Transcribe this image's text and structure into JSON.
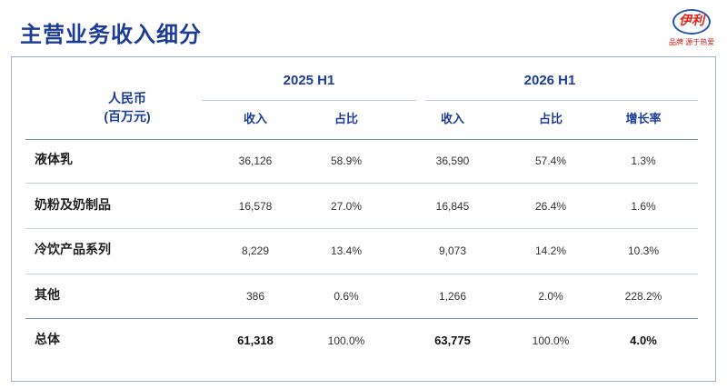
{
  "title": "主营业务收入细分",
  "brand": {
    "logo_text": "伊利",
    "slogan": "品牌 源于热爱"
  },
  "table": {
    "unit_line1": "人民币",
    "unit_line2": "(百万元)",
    "periods": [
      "2025 H1",
      "2026 H1"
    ],
    "columns": [
      "收入",
      "占比",
      "收入",
      "占比",
      "增长率"
    ],
    "rows": [
      {
        "label": "液体乳",
        "values": [
          "36,126",
          "58.9%",
          "36,590",
          "57.4%",
          "1.3%"
        ]
      },
      {
        "label": "奶粉及奶制品",
        "values": [
          "16,578",
          "27.0%",
          "16,845",
          "26.4%",
          "1.6%"
        ]
      },
      {
        "label": "冷饮产品系列",
        "values": [
          "8,229",
          "13.4%",
          "9,073",
          "14.2%",
          "10.3%"
        ]
      },
      {
        "label": "其他",
        "values": [
          "386",
          "0.6%",
          "1,266",
          "2.0%",
          "228.2%"
        ]
      },
      {
        "label": "总体",
        "values": [
          "61,318",
          "100.0%",
          "63,775",
          "100.0%",
          "4.0%"
        ]
      }
    ]
  }
}
